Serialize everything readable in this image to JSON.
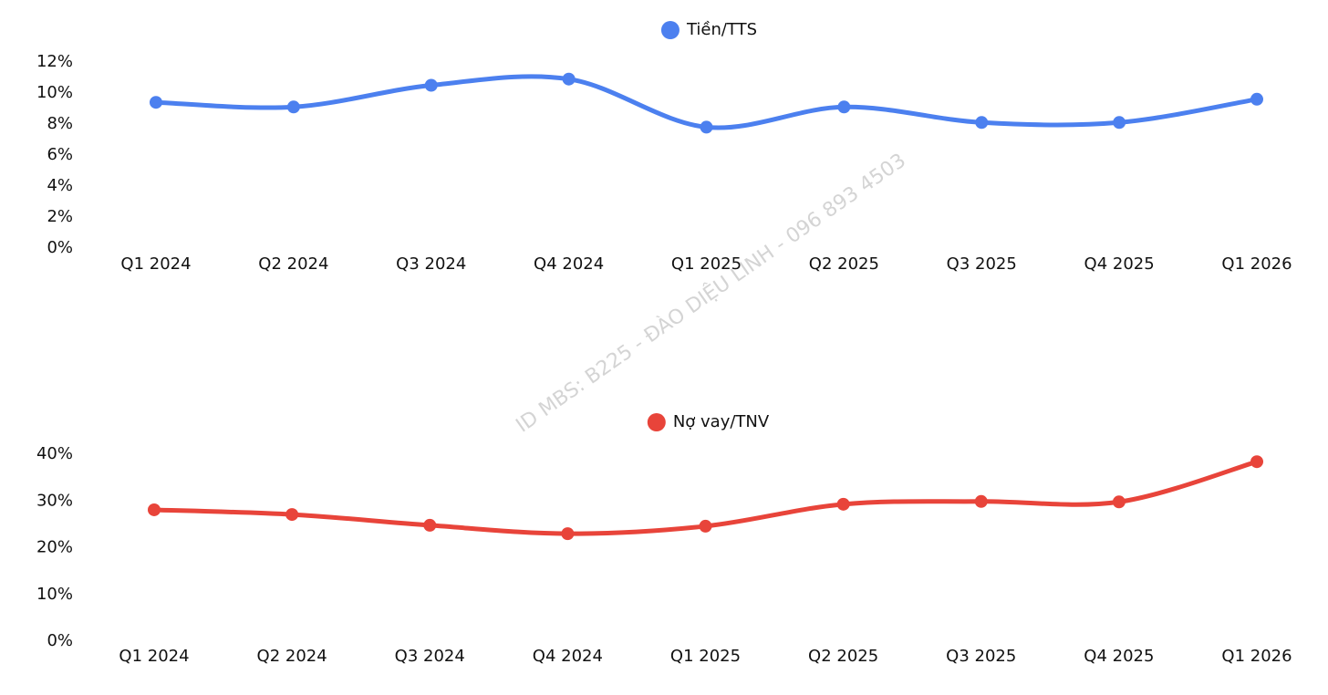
{
  "chart_data": [
    {
      "type": "line",
      "categories": [
        "Q1 2024",
        "Q2 2024",
        "Q3 2024",
        "Q4 2024",
        "Q1 2025",
        "Q2 2025",
        "Q3 2025",
        "Q4 2025",
        "Q1 2026"
      ],
      "series": [
        {
          "name": "Tiền/TTS",
          "color": "#4c80ef",
          "values": [
            9.4,
            9.1,
            10.5,
            10.9,
            7.8,
            9.1,
            8.1,
            8.1,
            9.6
          ]
        }
      ],
      "ylim": [
        0,
        12
      ],
      "yticks": [
        {
          "value": 0,
          "label": "0%"
        },
        {
          "value": 2,
          "label": "2%"
        },
        {
          "value": 4,
          "label": "4%"
        },
        {
          "value": 6,
          "label": "6%"
        },
        {
          "value": 8,
          "label": "8%"
        },
        {
          "value": 10,
          "label": "10%"
        },
        {
          "value": 12,
          "label": "12%"
        }
      ],
      "grid": false,
      "legend": "top"
    },
    {
      "type": "line",
      "categories": [
        "Q1 2024",
        "Q2 2024",
        "Q3 2024",
        "Q4 2024",
        "Q1 2025",
        "Q2 2025",
        "Q3 2025",
        "Q4 2025",
        "Q1 2026"
      ],
      "series": [
        {
          "name": "Nợ vay/TNV",
          "color": "#e8443a",
          "values": [
            28.1,
            27.1,
            24.8,
            23.0,
            24.6,
            29.3,
            29.9,
            29.8,
            38.4
          ]
        }
      ],
      "ylim": [
        0,
        40
      ],
      "yticks": [
        {
          "value": 0,
          "label": "0%"
        },
        {
          "value": 10,
          "label": "10%"
        },
        {
          "value": 20,
          "label": "20%"
        },
        {
          "value": 30,
          "label": "30%"
        },
        {
          "value": 40,
          "label": "40%"
        }
      ],
      "grid": false,
      "legend": "top"
    }
  ],
  "watermark": "ID MBS: B225 - ĐÀO DIỆU LINH - 096 893 4503"
}
